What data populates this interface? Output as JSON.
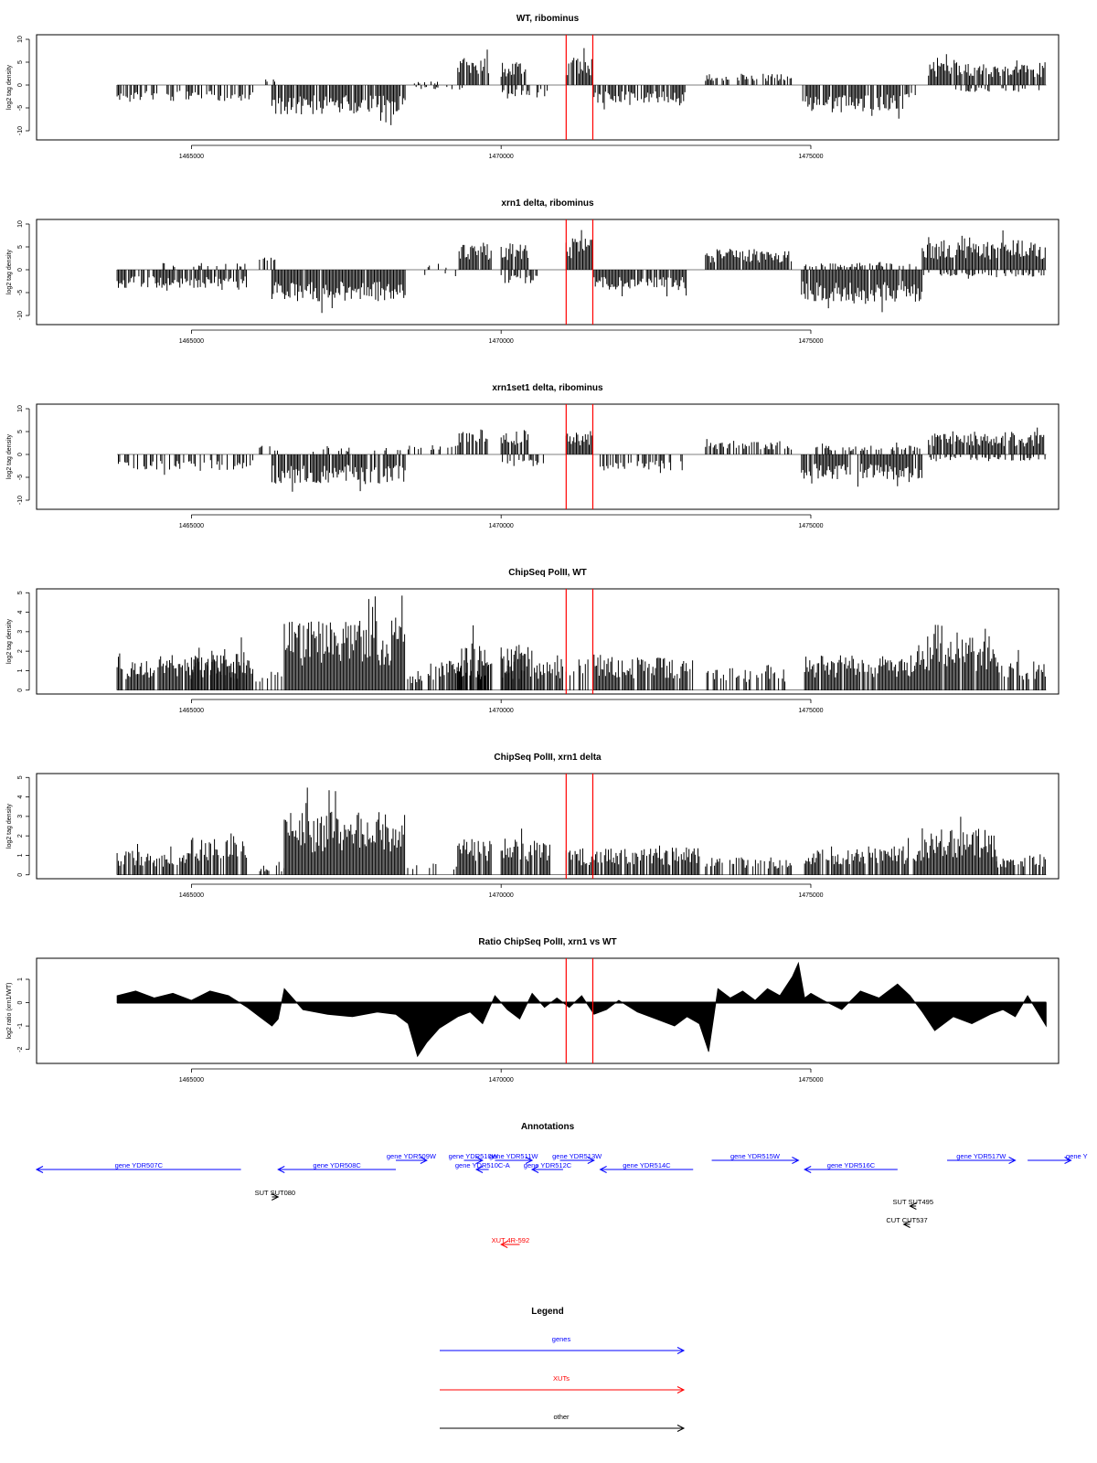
{
  "chart_data": [
    {
      "type": "bar",
      "title": "WT, ribominus",
      "ylabel": "log2 tag density",
      "xlabel": "",
      "xlim": [
        1462500,
        1479000
      ],
      "ylim": [
        -12,
        11
      ],
      "yticks": [
        -10,
        -5,
        0,
        5,
        10
      ],
      "xticks": [
        1465000,
        1470000,
        1475000
      ],
      "xtick_labels": [
        "1465000",
        "1470000",
        "1475000"
      ],
      "markers": [
        1471050,
        1471480
      ],
      "grid": false,
      "segments": [
        {
          "x0": 1463800,
          "x1": 1466000,
          "level": -3.5,
          "density": 0.55
        },
        {
          "x0": 1466200,
          "x1": 1466400,
          "level": 2.0,
          "density": 0.4
        },
        {
          "x0": 1466300,
          "x1": 1468450,
          "level": -6.5,
          "density": 0.9
        },
        {
          "x0": 1468600,
          "x1": 1469000,
          "level": 0.8,
          "density": 0.2
        },
        {
          "x0": 1468400,
          "x1": 1469400,
          "level": -1.0,
          "density": 0.15
        },
        {
          "x0": 1469300,
          "x1": 1469800,
          "level": 6.0,
          "density": 0.9
        },
        {
          "x0": 1470000,
          "x1": 1470400,
          "level": 5.0,
          "density": 0.85
        },
        {
          "x0": 1470000,
          "x1": 1470750,
          "level": -2.5,
          "density": 0.5
        },
        {
          "x0": 1471050,
          "x1": 1471480,
          "level": 6.0,
          "density": 0.95
        },
        {
          "x0": 1471500,
          "x1": 1473000,
          "level": -4.0,
          "density": 0.8
        },
        {
          "x0": 1473300,
          "x1": 1474700,
          "level": 2.5,
          "density": 0.6
        },
        {
          "x0": 1474850,
          "x1": 1476500,
          "level": -6.0,
          "density": 0.9
        },
        {
          "x0": 1476500,
          "x1": 1476800,
          "level": -3.0,
          "density": 0.4
        },
        {
          "x0": 1476900,
          "x1": 1478800,
          "level": 5.0,
          "density": 0.9
        },
        {
          "x0": 1477300,
          "x1": 1478800,
          "level": -1.5,
          "density": 0.3
        }
      ]
    },
    {
      "type": "bar",
      "title": "xrn1 delta, ribominus",
      "ylabel": "log2 tag density",
      "xlabel": "",
      "xlim": [
        1462500,
        1479000
      ],
      "ylim": [
        -12,
        11
      ],
      "yticks": [
        -10,
        -5,
        0,
        5,
        10
      ],
      "xticks": [
        1465000,
        1470000,
        1475000
      ],
      "xtick_labels": [
        "1465000",
        "1470000",
        "1475000"
      ],
      "markers": [
        1471050,
        1471480
      ],
      "grid": false,
      "segments": [
        {
          "x0": 1463800,
          "x1": 1465900,
          "level": -4.0,
          "density": 0.9
        },
        {
          "x0": 1464500,
          "x1": 1465900,
          "level": 1.5,
          "density": 0.2
        },
        {
          "x0": 1466100,
          "x1": 1466400,
          "level": 3.0,
          "density": 0.5
        },
        {
          "x0": 1466300,
          "x1": 1468450,
          "level": -7.0,
          "density": 0.95
        },
        {
          "x0": 1468500,
          "x1": 1469300,
          "level": -1.5,
          "density": 0.2
        },
        {
          "x0": 1468800,
          "x1": 1469300,
          "level": 1.0,
          "density": 0.2
        },
        {
          "x0": 1469300,
          "x1": 1469850,
          "level": 6.0,
          "density": 0.9
        },
        {
          "x0": 1470000,
          "x1": 1470450,
          "level": 6.0,
          "density": 0.9
        },
        {
          "x0": 1470000,
          "x1": 1470700,
          "level": -3.0,
          "density": 0.6
        },
        {
          "x0": 1471050,
          "x1": 1471480,
          "level": 7.0,
          "density": 1.0
        },
        {
          "x0": 1471500,
          "x1": 1473000,
          "level": -4.5,
          "density": 0.9
        },
        {
          "x0": 1473300,
          "x1": 1474700,
          "level": 4.5,
          "density": 0.95
        },
        {
          "x0": 1474850,
          "x1": 1476800,
          "level": -7.0,
          "density": 0.95
        },
        {
          "x0": 1474900,
          "x1": 1476700,
          "level": 1.5,
          "density": 0.4
        },
        {
          "x0": 1476800,
          "x1": 1478800,
          "level": 6.5,
          "density": 0.95
        },
        {
          "x0": 1476800,
          "x1": 1478800,
          "level": -1.5,
          "density": 0.4
        }
      ]
    },
    {
      "type": "bar",
      "title": "xrn1set1 delta, ribominus",
      "ylabel": "log2 tag density",
      "xlabel": "",
      "xlim": [
        1462500,
        1479000
      ],
      "ylim": [
        -12,
        11
      ],
      "yticks": [
        -10,
        -5,
        0,
        5,
        10
      ],
      "xticks": [
        1465000,
        1470000,
        1475000
      ],
      "xtick_labels": [
        "1465000",
        "1470000",
        "1475000"
      ],
      "markers": [
        1471050,
        1471480
      ],
      "grid": false,
      "segments": [
        {
          "x0": 1463800,
          "x1": 1466000,
          "level": -3.5,
          "density": 0.45
        },
        {
          "x0": 1466100,
          "x1": 1466400,
          "level": 2.0,
          "density": 0.4
        },
        {
          "x0": 1466300,
          "x1": 1468450,
          "level": -6.5,
          "density": 0.85
        },
        {
          "x0": 1466800,
          "x1": 1468400,
          "level": 1.5,
          "density": 0.15
        },
        {
          "x0": 1468500,
          "x1": 1469300,
          "level": 2.0,
          "density": 0.3
        },
        {
          "x0": 1469300,
          "x1": 1469800,
          "level": 5.5,
          "density": 0.85
        },
        {
          "x0": 1470000,
          "x1": 1470450,
          "level": 5.5,
          "density": 0.85
        },
        {
          "x0": 1470000,
          "x1": 1470700,
          "level": -3.0,
          "density": 0.5
        },
        {
          "x0": 1471050,
          "x1": 1471480,
          "level": 5.5,
          "density": 0.95
        },
        {
          "x0": 1471600,
          "x1": 1473000,
          "level": -3.5,
          "density": 0.6
        },
        {
          "x0": 1473300,
          "x1": 1474700,
          "level": 3.0,
          "density": 0.7
        },
        {
          "x0": 1474850,
          "x1": 1476800,
          "level": -5.5,
          "density": 0.85
        },
        {
          "x0": 1475000,
          "x1": 1476800,
          "level": 2.0,
          "density": 0.5
        },
        {
          "x0": 1476900,
          "x1": 1478800,
          "level": 5.0,
          "density": 0.9
        },
        {
          "x0": 1476900,
          "x1": 1478800,
          "level": -1.5,
          "density": 0.4
        }
      ]
    },
    {
      "type": "bar",
      "title": "ChipSeq PolII, WT",
      "ylabel": "log2 tag density",
      "xlabel": "",
      "xlim": [
        1462500,
        1479000
      ],
      "ylim": [
        -0.2,
        5.2
      ],
      "yticks": [
        0,
        1,
        2,
        3,
        4,
        5
      ],
      "xticks": [
        1465000,
        1470000,
        1475000
      ],
      "xtick_labels": [
        "1465000",
        "1470000",
        "1475000"
      ],
      "markers": [
        1471050,
        1471480
      ],
      "grid": false,
      "segments": [
        {
          "x0": 1463800,
          "x1": 1466000,
          "level": 1.6,
          "density": 0.9
        },
        {
          "x0": 1465000,
          "x1": 1465900,
          "level": 2.2,
          "density": 0.8
        },
        {
          "x0": 1466000,
          "x1": 1466500,
          "level": 1.0,
          "density": 0.4
        },
        {
          "x0": 1466500,
          "x1": 1468450,
          "level": 3.6,
          "density": 1.0
        },
        {
          "x0": 1468450,
          "x1": 1469000,
          "level": 1.0,
          "density": 0.5
        },
        {
          "x0": 1469000,
          "x1": 1469850,
          "level": 1.6,
          "density": 0.8
        },
        {
          "x0": 1469300,
          "x1": 1469800,
          "level": 2.4,
          "density": 0.8
        },
        {
          "x0": 1470000,
          "x1": 1470400,
          "level": 2.5,
          "density": 0.9
        },
        {
          "x0": 1470000,
          "x1": 1471000,
          "level": 1.6,
          "density": 0.8
        },
        {
          "x0": 1471050,
          "x1": 1471450,
          "level": 1.6,
          "density": 0.6
        },
        {
          "x0": 1471500,
          "x1": 1473100,
          "level": 1.7,
          "density": 0.9
        },
        {
          "x0": 1473300,
          "x1": 1474600,
          "level": 1.2,
          "density": 0.5
        },
        {
          "x0": 1474900,
          "x1": 1476700,
          "level": 1.8,
          "density": 0.95
        },
        {
          "x0": 1476700,
          "x1": 1478000,
          "level": 2.8,
          "density": 0.95
        },
        {
          "x0": 1478000,
          "x1": 1478800,
          "level": 1.5,
          "density": 0.7
        }
      ]
    },
    {
      "type": "bar",
      "title": "ChipSeq PolII, xrn1 delta",
      "ylabel": "log2 tag density",
      "xlabel": "",
      "xlim": [
        1462500,
        1479000
      ],
      "ylim": [
        -0.2,
        5.2
      ],
      "yticks": [
        0,
        1,
        2,
        3,
        4,
        5
      ],
      "xticks": [
        1465000,
        1470000,
        1475000
      ],
      "xtick_labels": [
        "1465000",
        "1470000",
        "1475000"
      ],
      "markers": [
        1471050,
        1471480
      ],
      "grid": false,
      "segments": [
        {
          "x0": 1463800,
          "x1": 1465000,
          "level": 1.2,
          "density": 0.8
        },
        {
          "x0": 1465000,
          "x1": 1465900,
          "level": 2.0,
          "density": 0.85
        },
        {
          "x0": 1466000,
          "x1": 1466500,
          "level": 0.5,
          "density": 0.3
        },
        {
          "x0": 1466500,
          "x1": 1468450,
          "level": 3.3,
          "density": 1.0
        },
        {
          "x0": 1468450,
          "x1": 1469300,
          "level": 0.6,
          "density": 0.3
        },
        {
          "x0": 1469300,
          "x1": 1469850,
          "level": 1.9,
          "density": 0.9
        },
        {
          "x0": 1470000,
          "x1": 1470800,
          "level": 1.9,
          "density": 0.9
        },
        {
          "x0": 1471050,
          "x1": 1473200,
          "level": 1.4,
          "density": 0.9
        },
        {
          "x0": 1473300,
          "x1": 1474700,
          "level": 0.9,
          "density": 0.5
        },
        {
          "x0": 1474900,
          "x1": 1476800,
          "level": 1.5,
          "density": 0.9
        },
        {
          "x0": 1476800,
          "x1": 1478000,
          "level": 2.4,
          "density": 0.95
        },
        {
          "x0": 1478000,
          "x1": 1478800,
          "level": 1.0,
          "density": 0.6
        }
      ]
    },
    {
      "type": "area",
      "title": "Ratio ChipSeq PolII, xrn1 vs WT",
      "ylabel": "log2 ratio (xrn1/WT)",
      "xlabel": "",
      "xlim": [
        1462500,
        1479000
      ],
      "ylim": [
        -2.6,
        1.9
      ],
      "yticks": [
        -2,
        -1,
        0,
        1
      ],
      "xticks": [
        1465000,
        1470000,
        1475000
      ],
      "xtick_labels": [
        "1465000",
        "1470000",
        "1475000"
      ],
      "markers": [
        1471050,
        1471480
      ],
      "grid": false,
      "x": [
        1463800,
        1464100,
        1464400,
        1464700,
        1465000,
        1465300,
        1465600,
        1465900,
        1466100,
        1466300,
        1466400,
        1466500,
        1466800,
        1467200,
        1467600,
        1468000,
        1468300,
        1468500,
        1468650,
        1468800,
        1469000,
        1469300,
        1469500,
        1469700,
        1469900,
        1470100,
        1470300,
        1470500,
        1470700,
        1470900,
        1471100,
        1471300,
        1471500,
        1471700,
        1471900,
        1472200,
        1472500,
        1472800,
        1473000,
        1473200,
        1473350,
        1473500,
        1473700,
        1473900,
        1474100,
        1474300,
        1474500,
        1474700,
        1474800,
        1474900,
        1475000,
        1475200,
        1475500,
        1475800,
        1476100,
        1476400,
        1476600,
        1476800,
        1477000,
        1477300,
        1477600,
        1477900,
        1478100,
        1478300,
        1478500,
        1478800
      ],
      "y": [
        0.3,
        0.5,
        0.2,
        0.4,
        0.1,
        0.5,
        0.3,
        -0.2,
        -0.6,
        -1.0,
        -0.7,
        0.6,
        -0.3,
        -0.5,
        -0.6,
        -0.4,
        -0.5,
        -0.9,
        -2.3,
        -1.7,
        -1.1,
        -0.6,
        -0.4,
        -0.9,
        0.3,
        -0.3,
        -0.7,
        0.4,
        -0.2,
        0.2,
        -0.2,
        0.3,
        -0.5,
        -0.3,
        0.1,
        -0.4,
        -0.7,
        -1.0,
        -0.6,
        -0.9,
        -2.1,
        0.6,
        0.2,
        0.5,
        0.1,
        0.6,
        0.3,
        1.1,
        1.7,
        0.2,
        0.4,
        0.1,
        -0.3,
        0.5,
        0.2,
        0.8,
        0.3,
        -0.4,
        -1.2,
        -0.6,
        -0.9,
        -0.5,
        -0.3,
        -0.6,
        0.3,
        -1.0
      ]
    }
  ],
  "annotations": {
    "title": "Annotations",
    "items": [
      {
        "label": "gene YDR507C",
        "x0": 1462500,
        "x1": 1465800,
        "dir": "left",
        "row": 1,
        "color": "#0000ff"
      },
      {
        "label": "gene YDR508C",
        "x0": 1466400,
        "x1": 1468300,
        "dir": "left",
        "row": 1,
        "color": "#0000ff"
      },
      {
        "label": "gene YDR509W",
        "x0": 1468300,
        "x1": 1468800,
        "dir": "right",
        "row": 0,
        "color": "#0000ff"
      },
      {
        "label": "gene YDR510W",
        "x0": 1469400,
        "x1": 1469700,
        "dir": "right",
        "row": 0,
        "color": "#0000ff"
      },
      {
        "label": "gene YDR511W",
        "x0": 1469900,
        "x1": 1470500,
        "dir": "right",
        "row": 0,
        "color": "#0000ff"
      },
      {
        "label": "gene YDR510C-A",
        "x0": 1469600,
        "x1": 1469800,
        "dir": "left",
        "row": 1,
        "color": "#0000ff"
      },
      {
        "label": "gene YDR512C",
        "x0": 1470500,
        "x1": 1471000,
        "dir": "left",
        "row": 1,
        "color": "#0000ff"
      },
      {
        "label": "gene YDR513W",
        "x0": 1470950,
        "x1": 1471500,
        "dir": "right",
        "row": 0,
        "color": "#0000ff"
      },
      {
        "label": "gene YDR514C",
        "x0": 1471600,
        "x1": 1473100,
        "dir": "left",
        "row": 1,
        "color": "#0000ff"
      },
      {
        "label": "gene YDR515W",
        "x0": 1473400,
        "x1": 1474800,
        "dir": "right",
        "row": 0,
        "color": "#0000ff"
      },
      {
        "label": "gene YDR516C",
        "x0": 1474900,
        "x1": 1476400,
        "dir": "left",
        "row": 1,
        "color": "#0000ff"
      },
      {
        "label": "gene YDR517W",
        "x0": 1477200,
        "x1": 1478300,
        "dir": "right",
        "row": 0,
        "color": "#0000ff"
      },
      {
        "label": "gene Y",
        "x0": 1478500,
        "x1": 1479200,
        "dir": "right",
        "row": 0,
        "color": "#0000ff"
      },
      {
        "label": "SUT SUT080",
        "x0": 1466300,
        "x1": 1466400,
        "dir": "right",
        "row": 3,
        "color": "#000000"
      },
      {
        "label": "SUT SUT495",
        "x0": 1476600,
        "x1": 1476700,
        "dir": "left",
        "row": 4,
        "color": "#000000"
      },
      {
        "label": "CUT CUT537",
        "x0": 1476500,
        "x1": 1476600,
        "dir": "left",
        "row": 5,
        "color": "#000000"
      },
      {
        "label": "XUT 4R-592",
        "x0": 1470000,
        "x1": 1470300,
        "dir": "left",
        "row": 6,
        "color": "#ff0000"
      }
    ]
  },
  "legend": {
    "title": "Legend",
    "items": [
      {
        "label": "genes",
        "color": "#0000ff"
      },
      {
        "label": "XUTs",
        "color": "#ff0000"
      },
      {
        "label": "other",
        "color": "#000000"
      }
    ]
  }
}
